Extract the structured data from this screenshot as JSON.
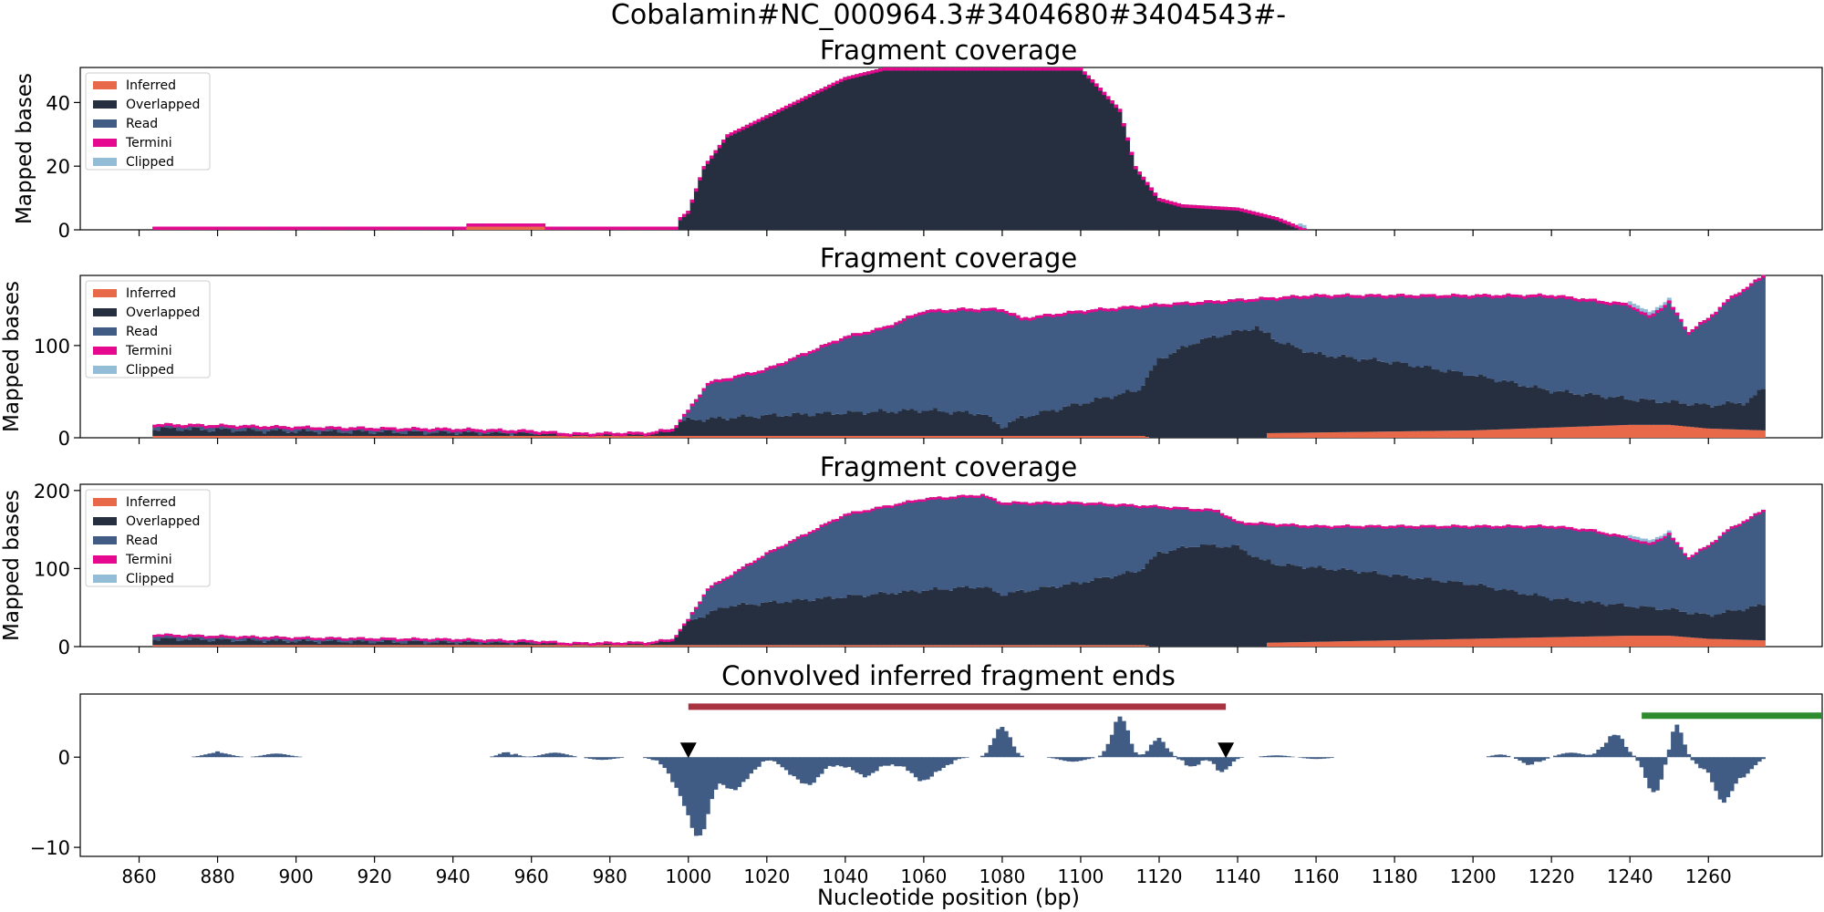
{
  "figure": {
    "suptitle": "Cobalamin#NC_000964.3#3404680#3404543#-",
    "xlabel": "Nucleotide position (bp)",
    "x_ticks": [
      860,
      880,
      900,
      920,
      940,
      960,
      980,
      1000,
      1020,
      1040,
      1060,
      1080,
      1100,
      1120,
      1140,
      1160,
      1180,
      1200,
      1220,
      1240,
      1260
    ],
    "xlim": [
      845,
      1289
    ]
  },
  "colors": {
    "inferred": "#e8684a",
    "overlapped": "#262f40",
    "read": "#405c85",
    "termini": "#e6098f",
    "clipped": "#93bcd6",
    "ends_bar": "#405c85",
    "red_segment": "#a8323f",
    "green_segment": "#2e8b2e",
    "marker": "#000000"
  },
  "chart_data": [
    {
      "type": "area",
      "title": "Fragment coverage",
      "ylabel": "Mapped bases",
      "ylim": [
        0,
        51
      ],
      "y_ticks": [
        0,
        20,
        40
      ],
      "legend_position": "top-left",
      "legend": [
        "Inferred",
        "Overlapped",
        "Read",
        "Termini",
        "Clipped"
      ],
      "read_keypoints": [
        [
          864,
          1
        ],
        [
          944,
          1
        ],
        [
          964,
          1
        ],
        [
          998,
          1
        ],
        [
          1000,
          0
        ]
      ],
      "inferred_keypoints": [
        [
          864,
          0
        ],
        [
          943,
          0
        ],
        [
          944,
          1
        ],
        [
          963,
          1
        ],
        [
          964,
          0
        ],
        [
          1290,
          0
        ]
      ],
      "overlapped_keypoints": [
        [
          864,
          0
        ],
        [
          997,
          0
        ],
        [
          998,
          3
        ],
        [
          1000,
          6
        ],
        [
          1004,
          20
        ],
        [
          1010,
          30
        ],
        [
          1020,
          36
        ],
        [
          1030,
          42
        ],
        [
          1040,
          48
        ],
        [
          1050,
          51
        ],
        [
          1100,
          51
        ],
        [
          1104,
          46
        ],
        [
          1110,
          38
        ],
        [
          1114,
          20
        ],
        [
          1120,
          10
        ],
        [
          1126,
          8
        ],
        [
          1140,
          7
        ],
        [
          1150,
          4
        ],
        [
          1156,
          1
        ],
        [
          1158,
          0
        ],
        [
          1290,
          0
        ]
      ],
      "clipped_keypoints": [
        [
          1156,
          1
        ],
        [
          1162,
          1
        ],
        [
          1163,
          0
        ]
      ],
      "termini": 1
    },
    {
      "type": "area",
      "title": "Fragment coverage",
      "ylabel": "Mapped bases",
      "ylim": [
        0,
        176
      ],
      "y_ticks": [
        0,
        100
      ],
      "legend_position": "top-left",
      "legend": [
        "Inferred",
        "Overlapped",
        "Read",
        "Termini",
        "Clipped"
      ],
      "inferred_keypoints": [
        [
          864,
          2
        ],
        [
          1000,
          2
        ],
        [
          1116,
          2
        ],
        [
          1118,
          0
        ],
        [
          1147,
          0
        ],
        [
          1148,
          5
        ],
        [
          1200,
          8
        ],
        [
          1240,
          14
        ],
        [
          1250,
          14
        ],
        [
          1260,
          10
        ],
        [
          1274,
          8
        ]
      ],
      "overlapped_keypoints": [
        [
          864,
          8
        ],
        [
          900,
          5
        ],
        [
          960,
          3
        ],
        [
          1000,
          17
        ],
        [
          1020,
          22
        ],
        [
          1060,
          28
        ],
        [
          1075,
          24
        ],
        [
          1080,
          10
        ],
        [
          1085,
          20
        ],
        [
          1100,
          35
        ],
        [
          1115,
          50
        ],
        [
          1120,
          85
        ],
        [
          1130,
          105
        ],
        [
          1140,
          115
        ],
        [
          1145,
          120
        ],
        [
          1150,
          100
        ],
        [
          1160,
          85
        ],
        [
          1180,
          75
        ],
        [
          1200,
          60
        ],
        [
          1220,
          40
        ],
        [
          1240,
          28
        ],
        [
          1250,
          25
        ],
        [
          1260,
          25
        ],
        [
          1270,
          30
        ],
        [
          1274,
          45
        ]
      ],
      "total_keypoints": [
        [
          864,
          15
        ],
        [
          880,
          14
        ],
        [
          900,
          12
        ],
        [
          940,
          10
        ],
        [
          960,
          8
        ],
        [
          970,
          5
        ],
        [
          990,
          6
        ],
        [
          996,
          10
        ],
        [
          1000,
          30
        ],
        [
          1005,
          60
        ],
        [
          1020,
          75
        ],
        [
          1040,
          110
        ],
        [
          1050,
          120
        ],
        [
          1060,
          138
        ],
        [
          1070,
          140
        ],
        [
          1080,
          140
        ],
        [
          1085,
          130
        ],
        [
          1100,
          138
        ],
        [
          1120,
          145
        ],
        [
          1140,
          150
        ],
        [
          1160,
          155
        ],
        [
          1200,
          155
        ],
        [
          1220,
          155
        ],
        [
          1230,
          150
        ],
        [
          1240,
          145
        ],
        [
          1245,
          132
        ],
        [
          1250,
          148
        ],
        [
          1255,
          115
        ],
        [
          1260,
          130
        ],
        [
          1265,
          150
        ],
        [
          1274,
          176
        ]
      ],
      "clipped_keypoints": [
        [
          1240,
          4
        ],
        [
          1250,
          3
        ]
      ],
      "termini": 3
    },
    {
      "type": "area",
      "title": "Fragment coverage",
      "ylabel": "Mapped bases",
      "ylim": [
        0,
        208
      ],
      "y_ticks": [
        0,
        100,
        200
      ],
      "legend_position": "top-left",
      "legend": [
        "Inferred",
        "Overlapped",
        "Read",
        "Termini",
        "Clipped"
      ],
      "inferred_keypoints": [
        [
          864,
          2
        ],
        [
          1000,
          2
        ],
        [
          1116,
          2
        ],
        [
          1118,
          0
        ],
        [
          1147,
          0
        ],
        [
          1148,
          5
        ],
        [
          1200,
          10
        ],
        [
          1240,
          14
        ],
        [
          1250,
          14
        ],
        [
          1260,
          10
        ],
        [
          1274,
          8
        ]
      ],
      "overlapped_keypoints": [
        [
          864,
          8
        ],
        [
          900,
          5
        ],
        [
          960,
          3
        ],
        [
          1000,
          30
        ],
        [
          1010,
          50
        ],
        [
          1030,
          58
        ],
        [
          1060,
          70
        ],
        [
          1075,
          75
        ],
        [
          1080,
          65
        ],
        [
          1100,
          80
        ],
        [
          1115,
          95
        ],
        [
          1120,
          120
        ],
        [
          1130,
          130
        ],
        [
          1140,
          128
        ],
        [
          1150,
          100
        ],
        [
          1170,
          90
        ],
        [
          1200,
          70
        ],
        [
          1220,
          50
        ],
        [
          1240,
          38
        ],
        [
          1260,
          30
        ],
        [
          1274,
          45
        ]
      ],
      "total_keypoints": [
        [
          864,
          16
        ],
        [
          880,
          14
        ],
        [
          900,
          12
        ],
        [
          940,
          10
        ],
        [
          960,
          8
        ],
        [
          970,
          5
        ],
        [
          990,
          6
        ],
        [
          996,
          10
        ],
        [
          1000,
          35
        ],
        [
          1005,
          75
        ],
        [
          1020,
          120
        ],
        [
          1040,
          170
        ],
        [
          1060,
          190
        ],
        [
          1075,
          195
        ],
        [
          1080,
          185
        ],
        [
          1100,
          185
        ],
        [
          1120,
          180
        ],
        [
          1135,
          175
        ],
        [
          1140,
          160
        ],
        [
          1160,
          155
        ],
        [
          1200,
          155
        ],
        [
          1220,
          155
        ],
        [
          1230,
          150
        ],
        [
          1240,
          140
        ],
        [
          1245,
          132
        ],
        [
          1250,
          145
        ],
        [
          1255,
          115
        ],
        [
          1260,
          130
        ],
        [
          1265,
          150
        ],
        [
          1274,
          175
        ]
      ],
      "clipped_keypoints": [
        [
          1240,
          4
        ],
        [
          1250,
          3
        ]
      ],
      "termini": 3
    },
    {
      "type": "bar",
      "title": "Convolved inferred fragment ends",
      "ylim": [
        -11,
        7
      ],
      "y_ticks": [
        0,
        -10
      ],
      "peaks": [
        [
          880,
          0.5,
          3
        ],
        [
          895,
          0.4,
          3
        ],
        [
          954,
          0.6,
          2
        ],
        [
          966,
          0.5,
          3
        ],
        [
          978,
          -0.3,
          3
        ],
        [
          1000,
          -4.0,
          4
        ],
        [
          1003,
          -5.5,
          2.5
        ],
        [
          1012,
          -3.5,
          3.5
        ],
        [
          1030,
          -3.0,
          4
        ],
        [
          1045,
          -2.0,
          4
        ],
        [
          1060,
          -2.5,
          4
        ],
        [
          1080,
          3.5,
          2
        ],
        [
          1098,
          -0.5,
          3
        ],
        [
          1110,
          4.5,
          2
        ],
        [
          1120,
          2.0,
          2
        ],
        [
          1128,
          -1.0,
          2
        ],
        [
          1136,
          -1.5,
          2
        ],
        [
          1150,
          0.2,
          3
        ],
        [
          1160,
          -0.2,
          3
        ],
        [
          1207,
          0.3,
          2
        ],
        [
          1215,
          -0.8,
          2.5
        ],
        [
          1225,
          0.5,
          3
        ],
        [
          1236,
          2.5,
          2.5
        ],
        [
          1246,
          -4.0,
          2
        ],
        [
          1252,
          3.5,
          1.5
        ],
        [
          1258,
          -1.0,
          1.5
        ],
        [
          1264,
          -5.0,
          2.5
        ],
        [
          1270,
          -1.5,
          2
        ]
      ],
      "red_segment": [
        1000,
        1137
      ],
      "red_segment_y": 5.6,
      "green_segment": [
        1243,
        1289
      ],
      "green_segment_y": 4.6,
      "markers": [
        1000,
        1137
      ],
      "marker_y": 0.7
    }
  ]
}
